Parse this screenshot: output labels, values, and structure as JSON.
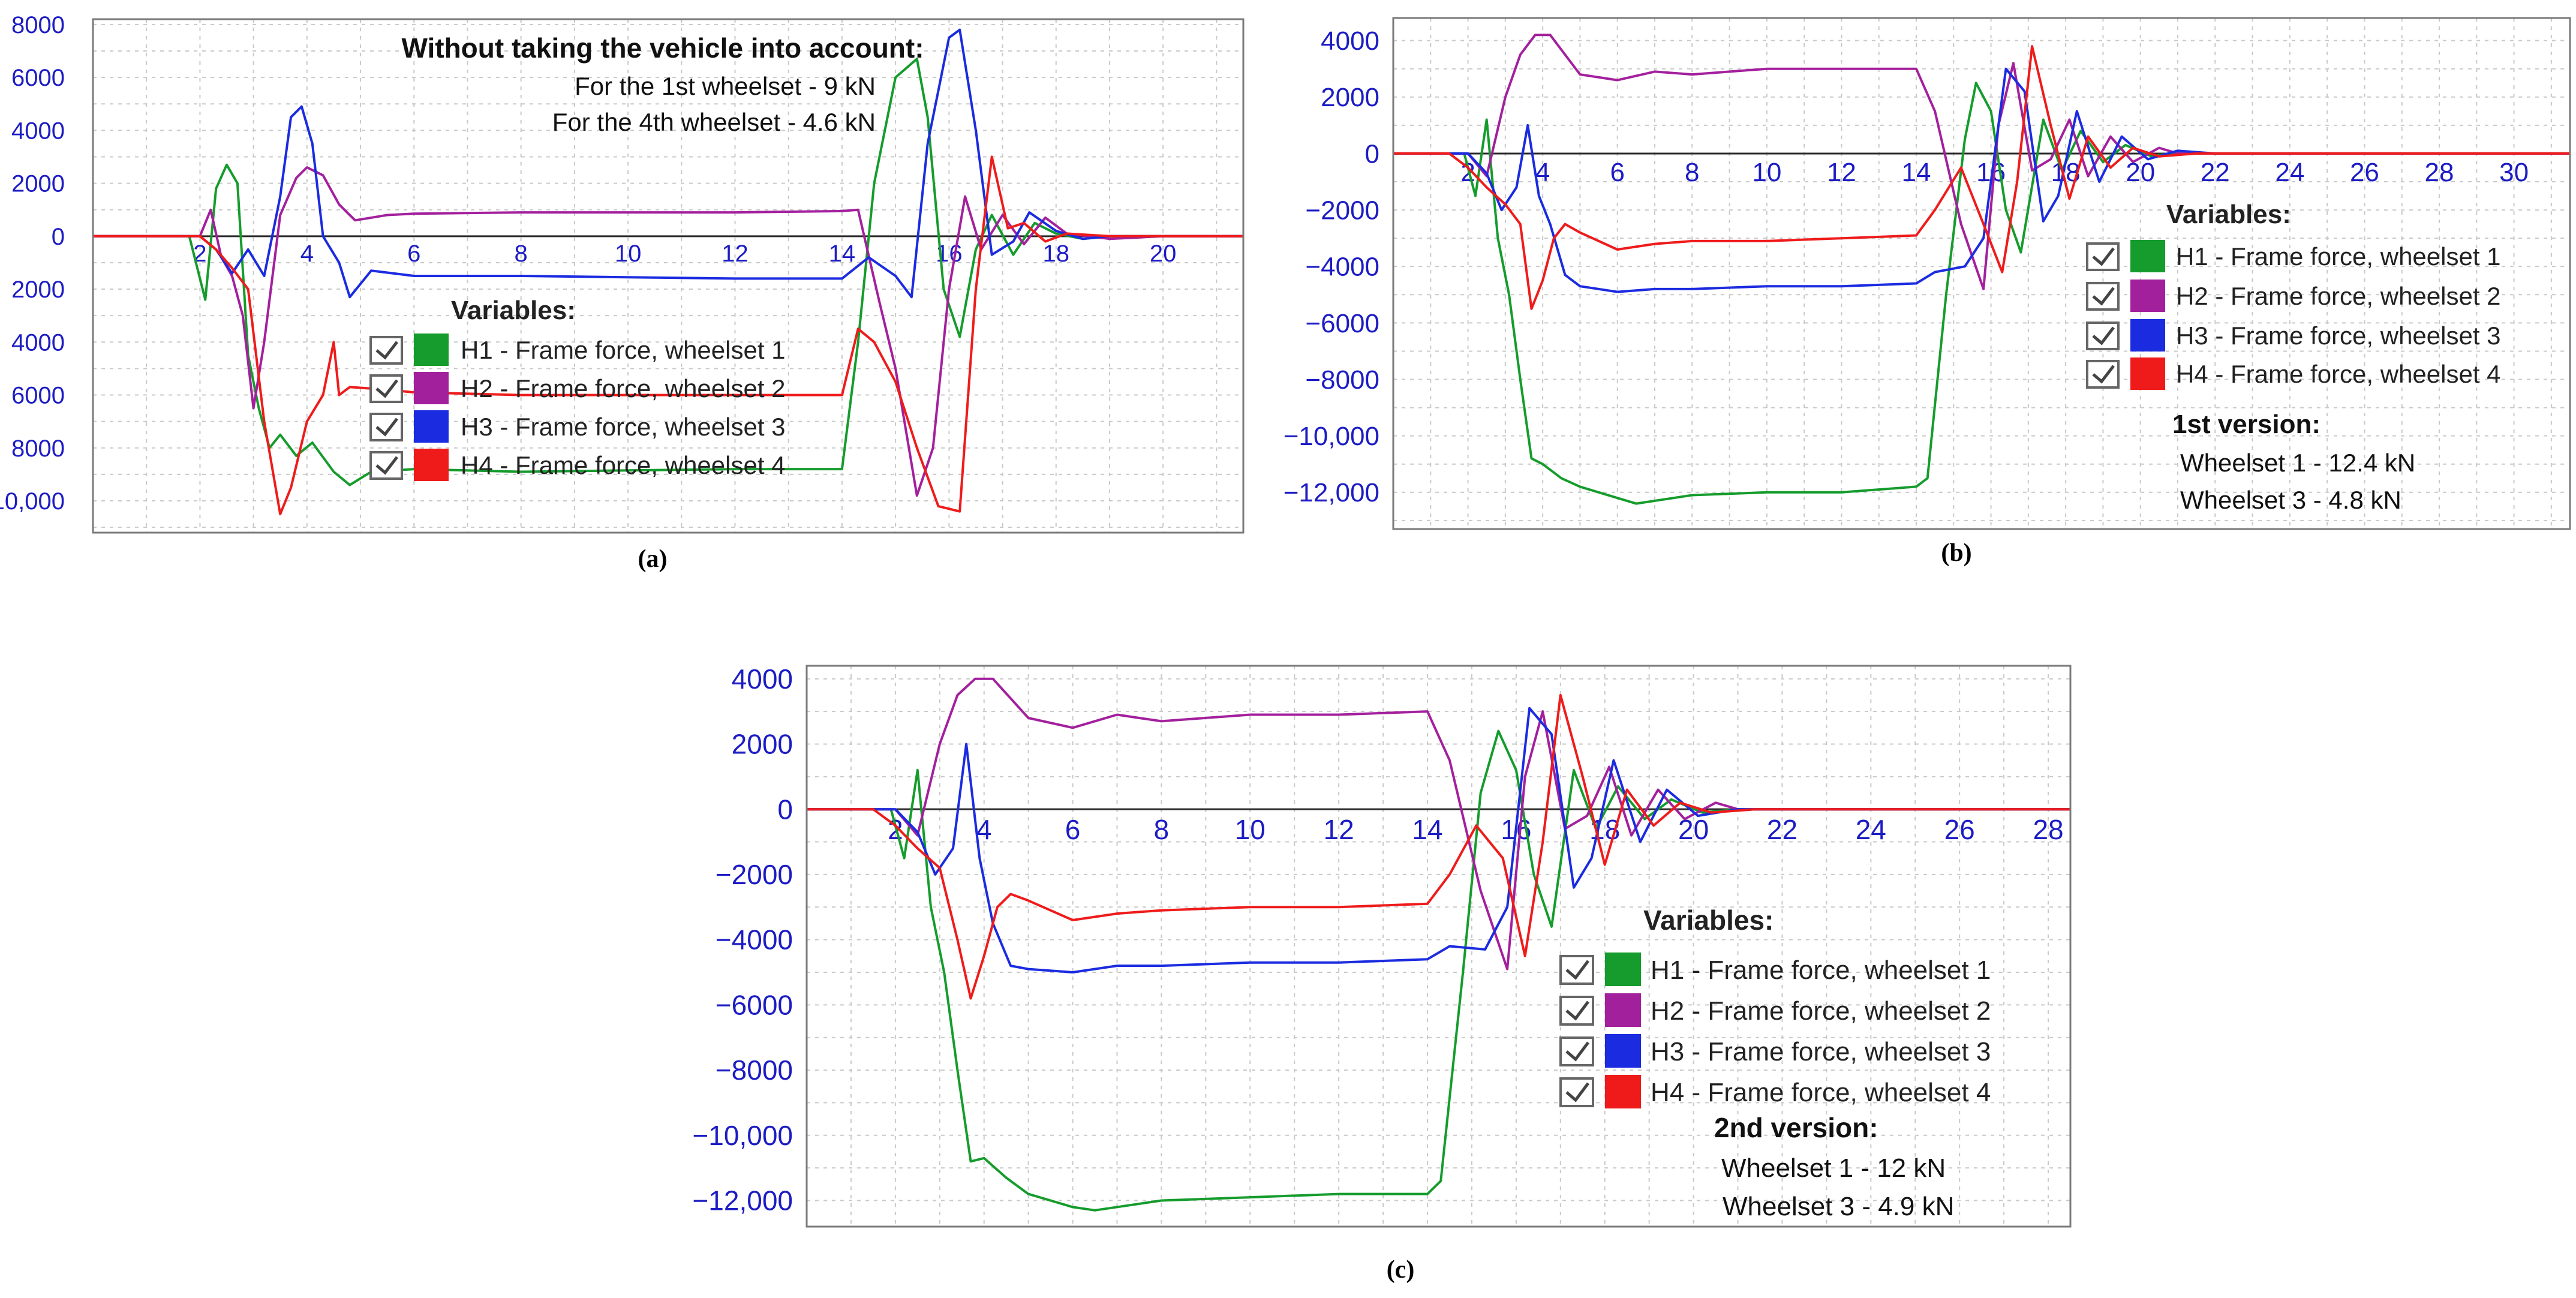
{
  "figure": {
    "legend_title": "Variables:",
    "colors": {
      "H1": "#159c2c",
      "H2": "#a3209d",
      "H3": "#1b2be0",
      "H4": "#ef1b1b",
      "tick": "#1c1cc4",
      "grid": "#c9c9c9"
    }
  },
  "chart_data": [
    {
      "panel": "a",
      "caption": "(a)",
      "type": "line",
      "xlim": [
        0,
        21.5
      ],
      "ylim": [
        -11200,
        8200
      ],
      "xticks": [
        2,
        4,
        6,
        8,
        10,
        12,
        14,
        16,
        18,
        20
      ],
      "xtick_labels": [
        "2",
        "4",
        "6",
        "8",
        "10",
        "12",
        "14",
        "16",
        "18",
        "20"
      ],
      "yticks": [
        8000,
        6000,
        4000,
        2000,
        0,
        -2000,
        -4000,
        -6000,
        -8000,
        -10000
      ],
      "ytick_labels": [
        "8000",
        "6000",
        "4000",
        "2000",
        "0",
        "2000",
        "4000",
        "6000",
        "8000",
        "10,000"
      ],
      "grid": true,
      "legend_position": "center",
      "legend": [
        "H1 - Frame force, wheelset 1",
        "H2 - Frame force, wheelset 2",
        "H3 - Frame force, wheelset 3",
        "H4 - Frame force, wheelset 4"
      ],
      "annotations": [
        "Without taking the vehicle into account:",
        "For the 1st wheelset - 9  kN",
        "For the 4th wheelset - 4.6 kN"
      ],
      "series": [
        {
          "key": "H1",
          "name": "H1 - Frame force, wheelset 1",
          "x": [
            0,
            1.8,
            2.1,
            2.3,
            2.5,
            2.7,
            2.9,
            3.1,
            3.3,
            3.5,
            3.8,
            4.1,
            4.5,
            4.8,
            5.2,
            6,
            8,
            10,
            12,
            14,
            14.3,
            14.6,
            15,
            15.4,
            15.6,
            15.9,
            16.2,
            16.5,
            16.8,
            17.2,
            17.6,
            18,
            18.5,
            19,
            20,
            21.5
          ],
          "y": [
            0,
            0,
            -2400,
            1800,
            2700,
            2000,
            -4500,
            -6500,
            -8000,
            -7500,
            -8300,
            -7800,
            -8900,
            -9400,
            -8900,
            -8800,
            -8900,
            -8850,
            -8800,
            -8800,
            -4000,
            2000,
            6000,
            6700,
            4500,
            -2000,
            -3800,
            -500,
            800,
            -700,
            500,
            100,
            -100,
            0,
            0,
            0
          ]
        },
        {
          "key": "H2",
          "name": "H2 - Frame force, wheelset 2",
          "x": [
            0,
            2.0,
            2.2,
            2.4,
            2.6,
            2.8,
            3.0,
            3.2,
            3.5,
            3.8,
            4.0,
            4.3,
            4.6,
            4.9,
            5.5,
            6,
            8,
            10,
            12,
            14,
            14.3,
            14.7,
            15,
            15.4,
            15.7,
            16.0,
            16.3,
            16.6,
            17,
            17.4,
            17.8,
            18.2,
            19,
            20,
            21.5
          ],
          "y": [
            0,
            0,
            1000,
            -800,
            -1500,
            -3000,
            -6500,
            -4000,
            800,
            2200,
            2600,
            2300,
            1200,
            600,
            800,
            850,
            900,
            900,
            900,
            950,
            1000,
            -2500,
            -5000,
            -9800,
            -8000,
            -2000,
            1500,
            -500,
            800,
            -300,
            700,
            100,
            -100,
            0,
            0
          ]
        },
        {
          "key": "H3",
          "name": "H3 - Frame force, wheelset 3",
          "x": [
            0,
            2.0,
            2.3,
            2.6,
            2.9,
            3.2,
            3.5,
            3.7,
            3.9,
            4.1,
            4.3,
            4.6,
            4.8,
            5.2,
            6,
            8,
            10,
            12,
            14,
            14.5,
            15,
            15.3,
            15.6,
            16.0,
            16.2,
            16.5,
            16.8,
            17.2,
            17.5,
            18,
            18.5,
            19,
            20,
            21.5
          ],
          "y": [
            0,
            0,
            -500,
            -1400,
            -500,
            -1500,
            1500,
            4500,
            4900,
            3500,
            0,
            -1000,
            -2300,
            -1300,
            -1500,
            -1500,
            -1550,
            -1600,
            -1600,
            -800,
            -1500,
            -2300,
            3500,
            7500,
            7800,
            4000,
            -700,
            -200,
            900,
            200,
            -100,
            0,
            0,
            0
          ]
        },
        {
          "key": "H4",
          "name": "H4 - Frame force, wheelset 4",
          "x": [
            0,
            2.0,
            2.3,
            2.6,
            2.9,
            3.2,
            3.5,
            3.7,
            4.0,
            4.3,
            4.5,
            4.6,
            4.8,
            5.5,
            6,
            8,
            10,
            12,
            14,
            14.3,
            14.6,
            15,
            15.4,
            15.8,
            16.2,
            16.5,
            16.8,
            17.1,
            17.4,
            17.8,
            18.2,
            19,
            20,
            21.5
          ],
          "y": [
            0,
            0,
            -500,
            -1200,
            -2000,
            -7000,
            -10500,
            -9500,
            -7000,
            -6000,
            -4000,
            -6000,
            -5700,
            -5800,
            -5900,
            -6000,
            -6000,
            -6000,
            -6000,
            -3500,
            -4000,
            -5500,
            -8000,
            -10200,
            -10400,
            -2000,
            3000,
            300,
            500,
            -200,
            100,
            0,
            0,
            0
          ]
        }
      ]
    },
    {
      "panel": "b",
      "caption": "(b)",
      "type": "line",
      "xlim": [
        0,
        31.5
      ],
      "ylim": [
        -13300,
        4800
      ],
      "xticks": [
        2,
        4,
        6,
        8,
        10,
        12,
        14,
        16,
        18,
        20,
        22,
        24,
        26,
        28,
        30
      ],
      "xtick_labels": [
        "2",
        "4",
        "6",
        "8",
        "10",
        "12",
        "14",
        "16",
        "18",
        "20",
        "22",
        "24",
        "26",
        "28",
        "30"
      ],
      "yticks": [
        4000,
        2000,
        0,
        -2000,
        -4000,
        -6000,
        -8000,
        -10000,
        -12000
      ],
      "ytick_labels": [
        "4000",
        "2000",
        "0",
        "−2000",
        "−4000",
        "−6000",
        "−8000",
        "−10,000",
        "−12,000"
      ],
      "grid": true,
      "legend_position": "right",
      "legend": [
        "H1 - Frame force, wheelset 1",
        "H2 - Frame force, wheelset 2",
        "H3 - Frame force, wheelset 3",
        "H4 - Frame force, wheelset 4"
      ],
      "annotations": [
        "1st version:",
        "Wheelset 1 - 12.4  kN",
        "Wheelset 3 - 4.8  kN"
      ],
      "series": [
        {
          "key": "H1",
          "name": "H1 - Frame force, wheelset 1",
          "x": [
            0,
            1.9,
            2.2,
            2.5,
            2.8,
            3.1,
            3.4,
            3.7,
            4.0,
            4.5,
            5,
            6,
            6.5,
            8,
            10,
            12,
            14,
            14.3,
            14.8,
            15.3,
            15.6,
            16.0,
            16.4,
            16.8,
            17.4,
            17.9,
            18.4,
            19,
            19.6,
            20.3,
            21,
            22,
            31.5
          ],
          "y": [
            0,
            0,
            -1500,
            1200,
            -3000,
            -5000,
            -8000,
            -10800,
            -11000,
            -11500,
            -11800,
            -12200,
            -12400,
            -12100,
            -12000,
            -12000,
            -11800,
            -11500,
            -5000,
            500,
            2500,
            1500,
            -2000,
            -3500,
            1200,
            -600,
            800,
            -300,
            300,
            -100,
            50,
            0,
            0
          ]
        },
        {
          "key": "H2",
          "name": "H2 - Frame force, wheelset 2",
          "x": [
            0,
            2.0,
            2.5,
            3.0,
            3.4,
            3.8,
            4.2,
            4.6,
            5,
            6,
            7,
            8,
            10,
            12,
            14,
            14.5,
            15.2,
            15.8,
            16.2,
            16.6,
            17.1,
            17.6,
            18.1,
            18.6,
            19.2,
            19.8,
            20.5,
            21,
            22,
            31.5
          ],
          "y": [
            0,
            0,
            -800,
            2000,
            3500,
            4200,
            4200,
            3500,
            2800,
            2600,
            2900,
            2800,
            3000,
            3000,
            3000,
            1500,
            -2500,
            -4800,
            1000,
            3200,
            -600,
            -200,
            1200,
            -800,
            600,
            -300,
            200,
            0,
            0,
            0
          ]
        },
        {
          "key": "H3",
          "name": "H3 - Frame force, wheelset 3",
          "x": [
            0,
            2.0,
            2.5,
            2.9,
            3.3,
            3.6,
            3.9,
            4.2,
            4.6,
            5,
            6,
            7,
            8,
            10,
            12,
            14,
            14.5,
            15.3,
            15.8,
            16.4,
            16.9,
            17.4,
            17.8,
            18.3,
            18.9,
            19.5,
            20.2,
            21,
            22,
            31.5
          ],
          "y": [
            0,
            0,
            -700,
            -2000,
            -1200,
            1000,
            -1500,
            -2500,
            -4300,
            -4700,
            -4900,
            -4800,
            -4800,
            -4700,
            -4700,
            -4600,
            -4200,
            -4000,
            -3000,
            3000,
            2200,
            -2400,
            -1500,
            1500,
            -1000,
            600,
            -200,
            100,
            0,
            0
          ]
        },
        {
          "key": "H4",
          "name": "H4 - Frame force, wheelset 4",
          "x": [
            0,
            1.5,
            2.0,
            2.5,
            3.0,
            3.4,
            3.7,
            4.0,
            4.3,
            4.6,
            5,
            6,
            7,
            8,
            10,
            12,
            14,
            14.5,
            15.2,
            15.8,
            16.3,
            16.7,
            17.1,
            17.6,
            18.1,
            18.6,
            19.2,
            19.8,
            20.5,
            21.5,
            31.5
          ],
          "y": [
            0,
            0,
            -500,
            -1200,
            -1800,
            -2500,
            -5500,
            -4500,
            -3000,
            -2500,
            -2800,
            -3400,
            -3200,
            -3100,
            -3100,
            -3000,
            -2900,
            -2000,
            -500,
            -2500,
            -4200,
            -1000,
            3800,
            1000,
            -1600,
            600,
            -500,
            200,
            -100,
            0,
            0
          ]
        }
      ]
    },
    {
      "panel": "c",
      "caption": "(c)",
      "type": "line",
      "xlim": [
        0,
        28.5
      ],
      "ylim": [
        -12800,
        4400
      ],
      "xticks": [
        2,
        4,
        6,
        8,
        10,
        12,
        14,
        16,
        18,
        20,
        22,
        24,
        26,
        28
      ],
      "xtick_labels": [
        "2",
        "4",
        "6",
        "8",
        "10",
        "12",
        "14",
        "16",
        "18",
        "20",
        "22",
        "24",
        "26",
        "28"
      ],
      "yticks": [
        4000,
        2000,
        0,
        -2000,
        -4000,
        -6000,
        -8000,
        -10000,
        -12000
      ],
      "ytick_labels": [
        "4000",
        "2000",
        "0",
        "−2000",
        "−4000",
        "−6000",
        "−8000",
        "−10,000",
        "−12,000"
      ],
      "grid": true,
      "legend_position": "right",
      "legend": [
        "H1 - Frame force, wheelset 1",
        "H2 - Frame force, wheelset 2",
        "H3 - Frame force, wheelset 3",
        "H4 - Frame force, wheelset 4"
      ],
      "annotations": [
        "2nd version:",
        "Wheelset 1 - 12  kN",
        "Wheelset 3 - 4.9  kN"
      ],
      "series": [
        {
          "key": "H1",
          "name": "H1 - Frame force, wheelset 1",
          "x": [
            0,
            1.9,
            2.2,
            2.5,
            2.8,
            3.1,
            3.4,
            3.7,
            4.0,
            4.5,
            5,
            6,
            6.5,
            8,
            10,
            12,
            14,
            14.3,
            14.8,
            15.2,
            15.6,
            16.0,
            16.4,
            16.8,
            17.3,
            17.8,
            18.3,
            18.9,
            19.5,
            20.2,
            21,
            28.5
          ],
          "y": [
            0,
            0,
            -1500,
            1200,
            -3000,
            -5000,
            -8000,
            -10800,
            -10700,
            -11300,
            -11800,
            -12200,
            -12300,
            -12000,
            -11900,
            -11800,
            -11800,
            -11400,
            -5000,
            500,
            2400,
            1200,
            -2000,
            -3600,
            1200,
            -600,
            700,
            -300,
            300,
            -100,
            0,
            0
          ]
        },
        {
          "key": "H2",
          "name": "H2 - Frame force, wheelset 2",
          "x": [
            0,
            2.0,
            2.5,
            3.0,
            3.4,
            3.8,
            4.2,
            4.6,
            5,
            6,
            7,
            8,
            10,
            12,
            14,
            14.5,
            15.2,
            15.8,
            16.2,
            16.6,
            17.1,
            17.6,
            18.1,
            18.6,
            19.2,
            19.8,
            20.5,
            21,
            28.5
          ],
          "y": [
            0,
            0,
            -800,
            2000,
            3500,
            4000,
            4000,
            3400,
            2800,
            2500,
            2900,
            2700,
            2900,
            2900,
            3000,
            1500,
            -2500,
            -4900,
            1000,
            3000,
            -600,
            -200,
            1300,
            -800,
            600,
            -300,
            200,
            0,
            0
          ]
        },
        {
          "key": "H3",
          "name": "H3 - Frame force, wheelset 3",
          "x": [
            0,
            2.0,
            2.5,
            2.9,
            3.3,
            3.6,
            3.9,
            4.2,
            4.6,
            5,
            6,
            7,
            8,
            10,
            12,
            14,
            14.5,
            15.3,
            15.8,
            16.3,
            16.8,
            17.3,
            17.7,
            18.2,
            18.8,
            19.4,
            20.1,
            21,
            28.5
          ],
          "y": [
            0,
            0,
            -700,
            -2000,
            -1200,
            2000,
            -1500,
            -3500,
            -4800,
            -4900,
            -5000,
            -4800,
            -4800,
            -4700,
            -4700,
            -4600,
            -4200,
            -4300,
            -3000,
            3100,
            2300,
            -2400,
            -1500,
            1500,
            -1000,
            600,
            -200,
            0,
            0
          ]
        },
        {
          "key": "H4",
          "name": "H4 - Frame force, wheelset 4",
          "x": [
            0,
            1.5,
            2.0,
            2.5,
            3.0,
            3.4,
            3.7,
            4.0,
            4.3,
            4.6,
            5,
            6,
            7,
            8,
            10,
            12,
            14,
            14.5,
            15.1,
            15.7,
            16.2,
            16.6,
            17.0,
            17.5,
            18.0,
            18.5,
            19.1,
            19.7,
            20.4,
            21.4,
            28.5
          ],
          "y": [
            0,
            0,
            -500,
            -1200,
            -1800,
            -4000,
            -5800,
            -4500,
            -3000,
            -2600,
            -2800,
            -3400,
            -3200,
            -3100,
            -3000,
            -3000,
            -2900,
            -2000,
            -500,
            -1500,
            -4500,
            -1000,
            3500,
            1000,
            -1700,
            600,
            -500,
            200,
            -100,
            0,
            0
          ]
        }
      ]
    }
  ]
}
